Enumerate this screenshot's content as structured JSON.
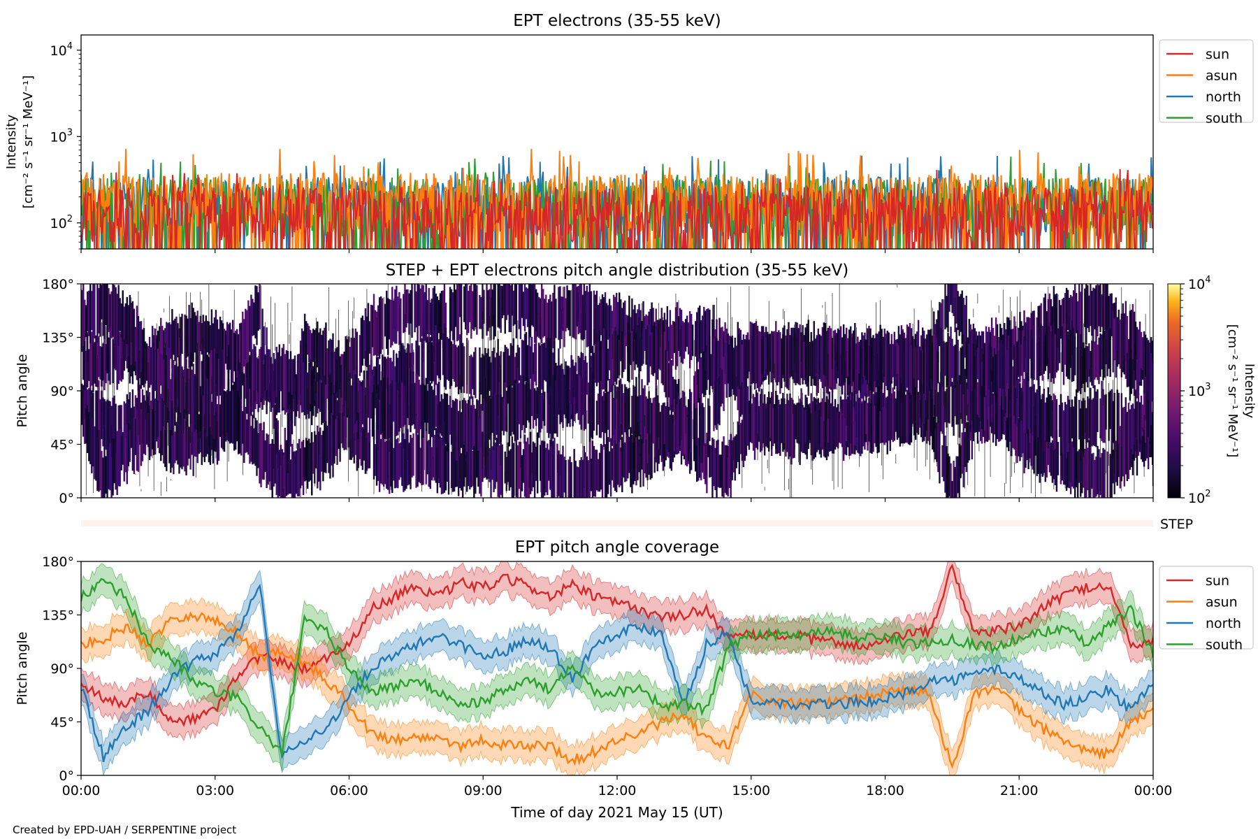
{
  "footer": "Created by EPD-UAH / SERPENTINE project",
  "x_axis": {
    "label": "Time of day 2021 May 15 (UT)",
    "ticks": [
      "00:00",
      "03:00",
      "06:00",
      "09:00",
      "12:00",
      "15:00",
      "18:00",
      "21:00",
      "00:00"
    ],
    "range_hours": [
      0,
      24
    ]
  },
  "colors": {
    "sun": "#d62728",
    "asun": "#ff7f0e",
    "north": "#1f77b4",
    "south": "#2ca02c"
  },
  "chart_data": [
    {
      "type": "line",
      "title": "EPT electrons (35-55 keV)",
      "ylabel_line1": "Intensity",
      "ylabel_line2": "[cm⁻² s⁻¹ sr⁻¹ MeV⁻¹]",
      "yscale": "log",
      "ylim": [
        50,
        15000
      ],
      "yticks": [
        {
          "base": "10",
          "exp": "2",
          "value": 100
        },
        {
          "base": "10",
          "exp": "3",
          "value": 1000
        },
        {
          "base": "10",
          "exp": "4",
          "value": 10000
        }
      ],
      "legend_position": "outside-right",
      "series": [
        {
          "name": "sun",
          "color": "#d62728",
          "typical": [
            60,
            260
          ],
          "spike_max": 420
        },
        {
          "name": "asun",
          "color": "#ff7f0e",
          "typical": [
            80,
            380
          ],
          "spike_max": 720
        },
        {
          "name": "north",
          "color": "#1f77b4",
          "typical": [
            70,
            340
          ],
          "spike_max": 600
        },
        {
          "name": "south",
          "color": "#2ca02c",
          "typical": [
            70,
            340
          ],
          "spike_max": 600
        }
      ]
    },
    {
      "type": "heatmap",
      "title": "STEP + EPT electrons pitch angle distribution (35-55 keV)",
      "ylabel": "Pitch angle",
      "ylim": [
        0,
        180
      ],
      "yticks": [
        "0°",
        "45°",
        "90°",
        "135°",
        "180°"
      ],
      "colorbar": {
        "label_line1": "Intensity",
        "label_line2": "[cm⁻² s⁻¹ sr⁻¹ MeV⁻¹]",
        "scale": "log",
        "range": [
          100,
          10000
        ],
        "ticks": [
          {
            "base": "10",
            "exp": "2"
          },
          {
            "base": "10",
            "exp": "3"
          },
          {
            "base": "10",
            "exp": "4"
          }
        ]
      },
      "note": "filled pitch-angle bands follow the four EPT telescope coverage curves"
    },
    {
      "type": "bar",
      "label": "STEP"
    },
    {
      "type": "area",
      "title": "EPT pitch angle coverage",
      "ylabel": "Pitch angle",
      "ylim": [
        0,
        180
      ],
      "yticks": [
        "0°",
        "45°",
        "90°",
        "135°",
        "180°"
      ],
      "legend_position": "outside-right",
      "x_hours": [
        0,
        0.5,
        1,
        1.5,
        2,
        2.5,
        3,
        3.5,
        4,
        4.5,
        5,
        5.5,
        6,
        6.5,
        7,
        7.5,
        8,
        8.5,
        9,
        9.5,
        10,
        10.5,
        11,
        11.5,
        12,
        12.5,
        13,
        13.5,
        14,
        14.5,
        15,
        15.5,
        16,
        16.5,
        17,
        17.5,
        18,
        18.5,
        19,
        19.5,
        20,
        20.5,
        21,
        21.5,
        22,
        22.5,
        23,
        23.5,
        24
      ],
      "band_halfwidth_deg": 13,
      "series": [
        {
          "name": "sun",
          "color": "#d62728",
          "values": [
            78,
            65,
            60,
            70,
            45,
            48,
            55,
            85,
            100,
            95,
            90,
            100,
            110,
            140,
            150,
            160,
            150,
            162,
            158,
            165,
            160,
            150,
            160,
            150,
            145,
            140,
            132,
            135,
            140,
            115,
            118,
            118,
            118,
            113,
            112,
            108,
            112,
            120,
            120,
            175,
            120,
            122,
            125,
            140,
            152,
            158,
            160,
            110,
            112
          ]
        },
        {
          "name": "asun",
          "color": "#ff7f0e",
          "values": [
            110,
            115,
            125,
            110,
            132,
            135,
            130,
            120,
            100,
            105,
            95,
            80,
            60,
            35,
            30,
            32,
            32,
            25,
            30,
            25,
            25,
            25,
            12,
            20,
            30,
            35,
            45,
            50,
            30,
            25,
            68,
            62,
            60,
            62,
            62,
            65,
            70,
            72,
            70,
            5,
            70,
            72,
            55,
            40,
            30,
            20,
            18,
            45,
            55
          ]
        },
        {
          "name": "north",
          "color": "#1f77b4",
          "values": [
            75,
            15,
            40,
            55,
            80,
            95,
            102,
            120,
            160,
            15,
            30,
            40,
            65,
            90,
            100,
            110,
            118,
            110,
            100,
            105,
            115,
            108,
            80,
            110,
            120,
            125,
            120,
            60,
            110,
            120,
            60,
            62,
            58,
            60,
            60,
            62,
            64,
            70,
            80,
            80,
            85,
            90,
            82,
            70,
            60,
            65,
            72,
            55,
            80
          ]
        },
        {
          "name": "south",
          "color": "#2ca02c",
          "values": [
            150,
            162,
            150,
            110,
            100,
            80,
            70,
            65,
            40,
            18,
            130,
            120,
            90,
            70,
            75,
            80,
            70,
            60,
            62,
            72,
            80,
            72,
            95,
            70,
            70,
            75,
            58,
            60,
            55,
            108,
            120,
            118,
            118,
            122,
            120,
            115,
            118,
            110,
            112,
            115,
            110,
            108,
            115,
            120,
            125,
            110,
            125,
            140,
            102
          ]
        }
      ]
    }
  ]
}
